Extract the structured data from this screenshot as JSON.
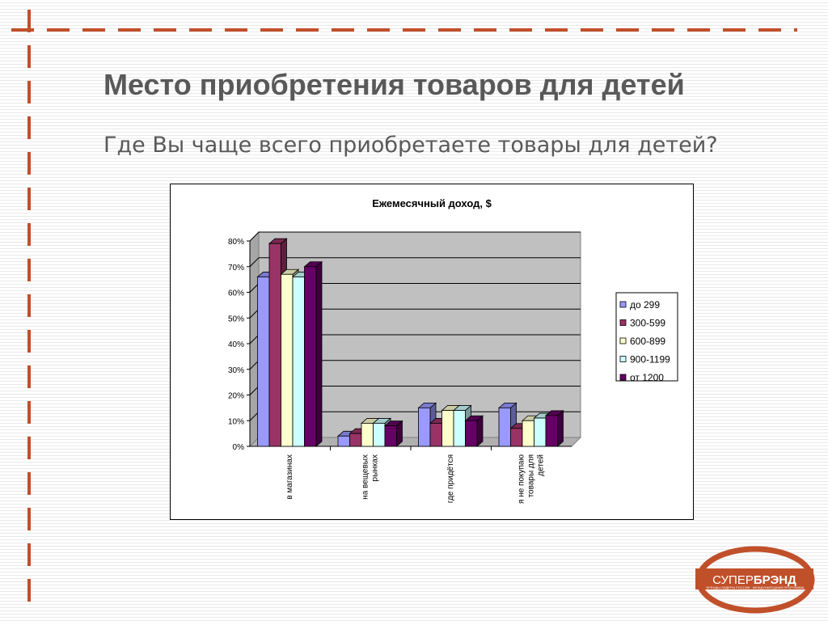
{
  "slide": {
    "title": "Место приобретения товаров для детей",
    "subtitle": "Где Вы чаще всего приобретаете товары для детей?"
  },
  "logo": {
    "brand_prefix": "СУПЕР",
    "brand_suffix": "БРЭНД",
    "tagline": "БРЕНДЫ-ЛИДЕРЫ РОССИИ · МЕЖДУНАРОДНАЯ ПРОГРАММА",
    "color": "#c0502a"
  },
  "chart_data": {
    "type": "bar",
    "title": "Ежемесячный доход, $",
    "categories": [
      "в магазинах",
      "на вещевых рынках",
      "где придётся",
      "я не покупаю товары для детей"
    ],
    "category_lines": [
      [
        "в магазинах"
      ],
      [
        "на вещевых",
        "рынках"
      ],
      [
        "где придётся"
      ],
      [
        "я не покупаю",
        "товары для",
        "детей"
      ]
    ],
    "series": [
      {
        "name": "до 299",
        "values": [
          66,
          4,
          15,
          15
        ],
        "color": "#9999ff"
      },
      {
        "name": "300-599",
        "values": [
          79,
          5,
          9,
          7
        ],
        "color": "#993366"
      },
      {
        "name": "600-899",
        "values": [
          67,
          9,
          14,
          10
        ],
        "color": "#ffffcc"
      },
      {
        "name": "900-1199",
        "values": [
          66,
          9,
          14,
          11
        ],
        "color": "#ccffff"
      },
      {
        "name": "от 1200",
        "values": [
          70,
          8,
          10,
          12
        ],
        "color": "#660066"
      }
    ],
    "ylim": [
      0,
      80
    ],
    "yticks": [
      "0%",
      "10%",
      "20%",
      "30%",
      "40%",
      "50%",
      "60%",
      "70%",
      "80%"
    ],
    "grid": true,
    "legend": "right",
    "wall_color": "#c0c0c0",
    "three_d": true
  }
}
